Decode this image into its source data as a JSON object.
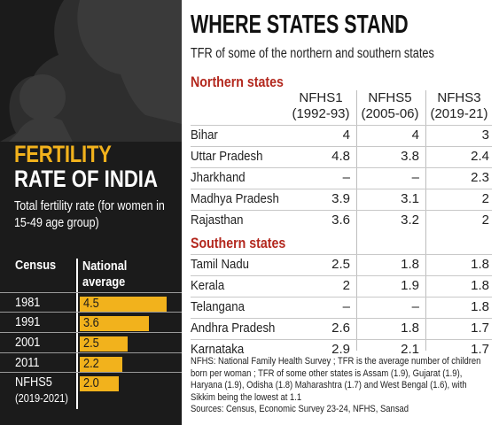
{
  "left_panel": {
    "title_line1": "FERTILITY",
    "title_line2": "RATE OF INDIA",
    "subtitle": "Total fertility rate (for women in 15-49 age group)",
    "col_census": "Census",
    "col_national": "National average"
  },
  "right_panel": {
    "title": "WHERE STATES STAND",
    "subtitle": "TFR of some of the northern and southern states",
    "columns": [
      {
        "name": "NFHS1",
        "years": "(1992-93)"
      },
      {
        "name": "NFHS5",
        "years": "(2005-06)"
      },
      {
        "name": "NFHS3",
        "years": "(2019-21)"
      }
    ],
    "northern_label": "Northern states",
    "southern_label": "Southern states",
    "footnote": "NFHS: National Family Health Survey ; TFR is the average number of children born per woman ; TFR of some other states is Assam (1.9), Gujarat (1.9), Haryana (1.9), Odisha (1.8) Maharashtra (1.7) and West Bengal (1.6), with Sikkim being the lowest at 1.1",
    "sources": "Sources: Census, Economic Survey 23-24, NFHS, Sansad"
  },
  "chart_data": [
    {
      "type": "bar",
      "categories": [
        "1981",
        "1991",
        "2001",
        "2011",
        "NFHS5"
      ],
      "category_sub": [
        "",
        "",
        "",
        "",
        "(2019-2021)"
      ],
      "values": [
        4.5,
        3.6,
        2.5,
        2.2,
        2.0
      ],
      "value_labels": [
        "4.5",
        "3.6",
        "2.5",
        "2.2",
        "2.0"
      ],
      "title": "FERTILITY RATE OF INDIA",
      "ylabel": "National average",
      "xlabel": "Census",
      "xlim": [
        0,
        4.5
      ],
      "bar_color": "#f2b21c"
    },
    {
      "type": "table",
      "columns": [
        "NFHS1 (1992-93)",
        "NFHS5 (2005-06)",
        "NFHS3 (2019-21)"
      ],
      "groups": [
        {
          "name": "Northern states",
          "rows": [
            {
              "state": "Bihar",
              "values": [
                "4",
                "4",
                "3"
              ]
            },
            {
              "state": "Uttar Pradesh",
              "values": [
                "4.8",
                "3.8",
                "2.4"
              ]
            },
            {
              "state": "Jharkhand",
              "values": [
                "–",
                "–",
                "2.3"
              ]
            },
            {
              "state": "Madhya Pradesh",
              "values": [
                "3.9",
                "3.1",
                "2"
              ]
            },
            {
              "state": "Rajasthan",
              "values": [
                "3.6",
                "3.2",
                "2"
              ]
            }
          ]
        },
        {
          "name": "Southern states",
          "rows": [
            {
              "state": "Tamil Nadu",
              "values": [
                "2.5",
                "1.8",
                "1.8"
              ]
            },
            {
              "state": "Kerala",
              "values": [
                "2",
                "1.9",
                "1.8"
              ]
            },
            {
              "state": "Telangana",
              "values": [
                "–",
                "–",
                "1.8"
              ]
            },
            {
              "state": "Andhra Pradesh",
              "values": [
                "2.6",
                "1.8",
                "1.7"
              ]
            },
            {
              "state": "Karnataka",
              "values": [
                "2.9",
                "2.1",
                "1.7"
              ]
            }
          ]
        }
      ]
    }
  ]
}
